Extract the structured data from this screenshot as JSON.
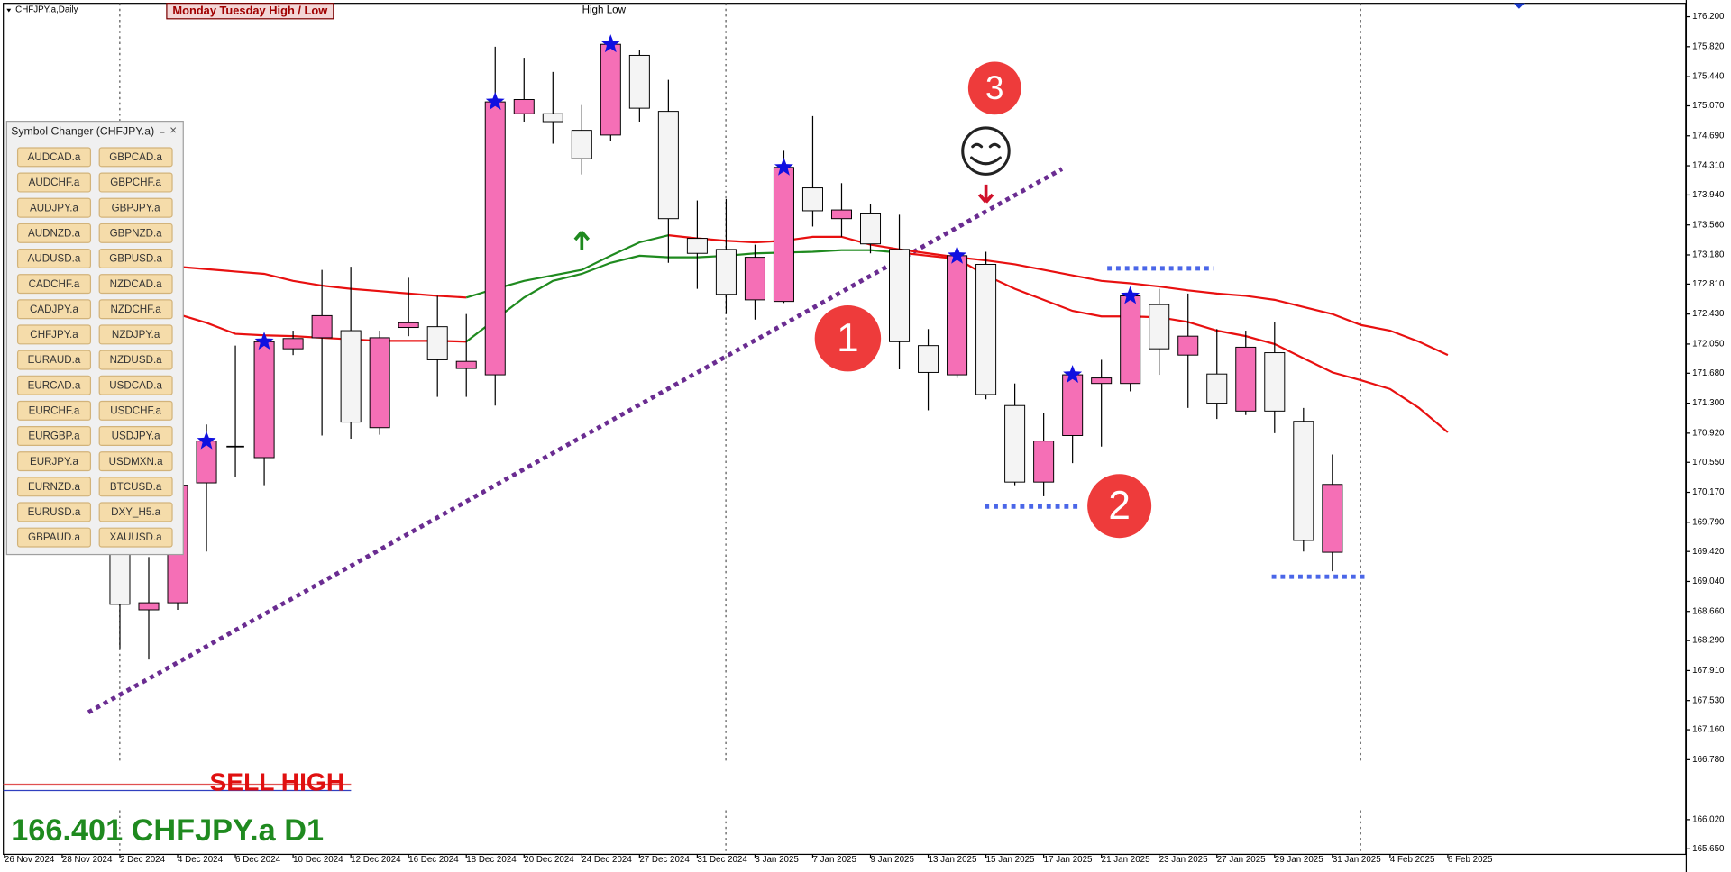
{
  "chart_data": {
    "type": "candlestick",
    "header": "CHFJPY.a,Daily",
    "indicator_box": "Monday Tuesday High / Low",
    "indicator_label": "High Low",
    "sell_text": "SELL HIGH",
    "status": "166.401 CHFJPY.a D1",
    "annotations": [
      "1",
      "2",
      "3"
    ],
    "panel": {
      "title": "Symbol Changer (CHFJPY.a)",
      "close": "×",
      "symbols": [
        "AUDCAD.a",
        "GBPCAD.a",
        "AUDCHF.a",
        "GBPCHF.a",
        "AUDJPY.a",
        "GBPJPY.a",
        "AUDNZD.a",
        "GBPNZD.a",
        "AUDUSD.a",
        "GBPUSD.a",
        "CADCHF.a",
        "NZDCAD.a",
        "CADJPY.a",
        "NZDCHF.a",
        "CHFJPY.a",
        "NZDJPY.a",
        "EURAUD.a",
        "NZDUSD.a",
        "EURCAD.a",
        "USDCAD.a",
        "EURCHF.a",
        "USDCHF.a",
        "EURGBP.a",
        "USDJPY.a",
        "EURJPY.a",
        "USDMXN.a",
        "EURNZD.a",
        "BTCUSD.a",
        "EURUSD.a",
        "DXY_H5.a",
        "GBPAUD.a",
        "XAUUSD.a"
      ]
    },
    "categories": [
      "26 Nov 2024",
      null,
      "28 Nov 2024",
      null,
      "2 Dec 2024",
      null,
      "4 Dec 2024",
      null,
      "6 Dec 2024",
      null,
      "10 Dec 2024",
      null,
      "12 Dec 2024",
      null,
      "16 Dec 2024",
      null,
      "18 Dec 2024",
      null,
      "20 Dec 2024",
      null,
      "24 Dec 2024",
      null,
      "27 Dec 2024",
      null,
      "31 Dec 2024",
      null,
      "3 Jan 2025",
      null,
      "7 Jan 2025",
      null,
      "9 Jan 2025",
      null,
      "13 Jan 2025",
      null,
      "15 Jan 2025",
      null,
      "17 Jan 2025",
      null,
      "21 Jan 2025",
      null,
      "23 Jan 2025",
      null,
      "27 Jan 2025",
      null,
      "29 Jan 2025",
      null,
      "31 Jan 2025",
      null,
      "4 Feb 2025",
      null,
      "6 Feb 2025"
    ],
    "open": [
      null,
      null,
      null,
      null,
      169.84,
      168.68,
      168.77,
      170.29,
      170.75,
      170.61,
      171.99,
      172.13,
      172.22,
      170.99,
      172.26,
      172.27,
      171.74,
      171.66,
      174.97,
      174.97,
      174.76,
      174.7,
      175.71,
      175.0,
      173.39,
      173.25,
      172.61,
      172.59,
      174.03,
      173.64,
      173.7,
      173.25,
      172.03,
      171.66,
      173.06,
      171.27,
      170.3,
      170.89,
      171.55,
      171.55,
      172.55,
      171.91,
      171.67,
      171.2,
      171.94,
      171.07,
      169.41,
      null,
      null,
      null,
      null
    ],
    "high": [
      null,
      null,
      null,
      null,
      170.12,
      169.35,
      170.33,
      171.03,
      172.03,
      172.15,
      172.22,
      172.99,
      173.03,
      172.22,
      172.89,
      172.66,
      172.43,
      175.82,
      175.68,
      175.5,
      175.08,
      175.92,
      175.78,
      175.4,
      173.87,
      173.89,
      173.31,
      174.5,
      174.94,
      174.09,
      173.82,
      173.69,
      172.24,
      173.27,
      173.22,
      171.55,
      171.17,
      171.73,
      171.85,
      172.75,
      172.75,
      172.69,
      172.24,
      172.22,
      172.33,
      171.24,
      170.65,
      null,
      null,
      null,
      null
    ],
    "low": [
      null,
      null,
      null,
      null,
      168.19,
      168.05,
      168.68,
      169.42,
      170.36,
      170.26,
      171.91,
      170.89,
      170.85,
      170.9,
      172.15,
      171.38,
      171.38,
      171.27,
      174.87,
      174.59,
      174.2,
      174.62,
      174.87,
      173.08,
      172.75,
      172.43,
      172.36,
      172.57,
      173.54,
      173.41,
      173.2,
      171.73,
      171.21,
      171.62,
      171.35,
      170.26,
      170.12,
      170.54,
      170.75,
      171.45,
      171.66,
      171.24,
      171.1,
      171.15,
      170.92,
      169.42,
      169.17,
      null,
      null,
      null,
      null
    ],
    "close": [
      null,
      null,
      null,
      null,
      168.75,
      168.77,
      170.26,
      170.82,
      170.75,
      172.08,
      172.12,
      172.41,
      171.06,
      172.13,
      172.32,
      171.85,
      171.83,
      175.12,
      175.15,
      174.87,
      174.4,
      175.85,
      175.04,
      173.64,
      173.2,
      172.68,
      173.15,
      174.29,
      173.74,
      173.75,
      173.32,
      172.08,
      171.69,
      173.17,
      171.41,
      170.3,
      170.82,
      171.66,
      171.62,
      172.66,
      171.99,
      172.15,
      171.3,
      172.01,
      171.2,
      169.56,
      170.27,
      null,
      null,
      null,
      null
    ],
    "bull_color": "#f56fb6",
    "bear_color": "#f4f4f4",
    "series": [
      {
        "color": "#e81010",
        "values": [
          null,
          null,
          null,
          null,
          null,
          null,
          173.03,
          173.0,
          172.97,
          172.94,
          172.85,
          172.79,
          172.75,
          172.72,
          172.69,
          172.66,
          172.64,
          null,
          null,
          null,
          null,
          null,
          null,
          173.43,
          173.39,
          173.36,
          173.34,
          173.36,
          173.41,
          173.41,
          173.31,
          173.25,
          173.2,
          173.15,
          173.11,
          173.06,
          172.99,
          172.92,
          172.85,
          172.82,
          172.78,
          172.73,
          172.69,
          172.66,
          172.61,
          172.52,
          172.43,
          172.29,
          172.22,
          172.08,
          171.91
        ]
      },
      {
        "color": "#1f8a1f",
        "values": [
          null,
          null,
          null,
          null,
          null,
          null,
          null,
          null,
          null,
          null,
          null,
          null,
          null,
          null,
          null,
          null,
          172.64,
          172.75,
          172.85,
          172.92,
          172.99,
          173.17,
          173.34,
          173.43,
          null,
          null,
          null,
          null,
          null,
          null,
          null,
          null,
          null,
          null,
          null,
          null,
          null,
          null,
          null,
          null,
          null,
          null,
          null,
          null,
          null,
          null,
          null,
          null,
          null,
          null,
          null
        ]
      },
      {
        "color": "#e81010",
        "values": [
          null,
          null,
          null,
          null,
          null,
          null,
          172.43,
          172.32,
          172.18,
          172.16,
          172.15,
          172.13,
          172.11,
          172.09,
          172.09,
          172.09,
          172.08,
          null,
          null,
          null,
          null,
          null,
          null,
          null,
          null,
          null,
          null,
          null,
          null,
          null,
          null,
          173.21,
          173.17,
          173.13,
          172.92,
          172.75,
          172.61,
          172.47,
          172.4,
          172.4,
          172.39,
          172.33,
          172.22,
          172.15,
          172.05,
          171.87,
          171.69,
          171.59,
          171.48,
          171.24,
          170.93
        ]
      },
      {
        "color": "#1f8a1f",
        "values": [
          null,
          null,
          null,
          null,
          null,
          null,
          null,
          null,
          null,
          null,
          null,
          null,
          null,
          null,
          null,
          null,
          172.08,
          172.36,
          172.64,
          172.85,
          172.94,
          173.08,
          173.17,
          173.15,
          173.15,
          173.17,
          173.2,
          173.21,
          173.22,
          173.24,
          173.24,
          173.21,
          null,
          null,
          null,
          null,
          null,
          null,
          null,
          null,
          null,
          null,
          null,
          null,
          null,
          null,
          null,
          null,
          null,
          null,
          null
        ]
      }
    ],
    "stars": [
      null,
      null,
      null,
      null,
      null,
      null,
      null,
      170.82,
      null,
      172.08,
      null,
      null,
      null,
      null,
      null,
      null,
      null,
      175.12,
      null,
      null,
      null,
      175.85,
      null,
      null,
      null,
      null,
      null,
      174.29,
      null,
      null,
      null,
      null,
      null,
      173.17,
      null,
      null,
      null,
      171.66,
      null,
      172.66,
      null,
      null,
      null,
      null,
      null,
      null,
      null,
      null,
      null,
      null,
      null
    ],
    "star_color": "#1010e0",
    "up_arrows": [
      null,
      null,
      null,
      null,
      null,
      null,
      null,
      null,
      null,
      null,
      null,
      null,
      null,
      null,
      null,
      null,
      null,
      null,
      null,
      null,
      173.36,
      null,
      null,
      null,
      null,
      null,
      null,
      null,
      null,
      null,
      null,
      null,
      null,
      null,
      null,
      null,
      null,
      null,
      null,
      null,
      null,
      null,
      null,
      null,
      null,
      null,
      null,
      null,
      null,
      null,
      null
    ],
    "down_arrows": [
      null,
      null,
      null,
      null,
      null,
      null,
      null,
      null,
      null,
      null,
      null,
      null,
      null,
      null,
      null,
      null,
      null,
      null,
      null,
      null,
      null,
      null,
      null,
      null,
      null,
      null,
      null,
      null,
      null,
      null,
      null,
      null,
      null,
      null,
      173.96,
      null,
      null,
      null,
      null,
      null,
      null,
      null,
      null,
      null,
      null,
      null,
      null,
      null,
      null,
      null,
      null
    ],
    "levels": [
      173.01,
      169.99,
      169.1
    ],
    "level_color": "#4a66e8",
    "trendline": [
      167.38,
      174.27
    ],
    "trendline_color": "#6a2c91",
    "price_lines": [
      166.47,
      166.39
    ],
    "price_line_colors": [
      "#e05050",
      "#3040c0"
    ],
    "ylim": [
      165.58,
      176.37
    ],
    "yticks": [
      {
        "value": 176.2,
        "label": "176.200"
      },
      {
        "value": 175.82,
        "label": "175.820"
      },
      {
        "value": 175.44,
        "label": "175.440"
      },
      {
        "value": 175.07,
        "label": "175.070"
      },
      {
        "value": 174.69,
        "label": "174.690"
      },
      {
        "value": 174.31,
        "label": "174.310"
      },
      {
        "value": 173.94,
        "label": "173.940"
      },
      {
        "value": 173.56,
        "label": "173.560"
      },
      {
        "value": 173.18,
        "label": "173.180"
      },
      {
        "value": 172.81,
        "label": "172.810"
      },
      {
        "value": 172.43,
        "label": "172.430"
      },
      {
        "value": 172.05,
        "label": "172.050"
      },
      {
        "value": 171.68,
        "label": "171.680"
      },
      {
        "value": 171.3,
        "label": "171.300"
      },
      {
        "value": 170.92,
        "label": "170.920"
      },
      {
        "value": 170.55,
        "label": "170.550"
      },
      {
        "value": 170.17,
        "label": "170.170"
      },
      {
        "value": 169.79,
        "label": "169.790"
      },
      {
        "value": 169.42,
        "label": "169.420"
      },
      {
        "value": 169.04,
        "label": "169.040"
      },
      {
        "value": 168.66,
        "label": "168.660"
      },
      {
        "value": 168.29,
        "label": "168.290"
      },
      {
        "value": 167.91,
        "label": "167.910"
      },
      {
        "value": 167.53,
        "label": "167.530"
      },
      {
        "value": 167.16,
        "label": "167.160"
      },
      {
        "value": 166.78,
        "label": "166.780"
      },
      {
        "value": 166.02,
        "label": "166.020"
      },
      {
        "value": 165.65,
        "label": "165.650"
      }
    ]
  }
}
